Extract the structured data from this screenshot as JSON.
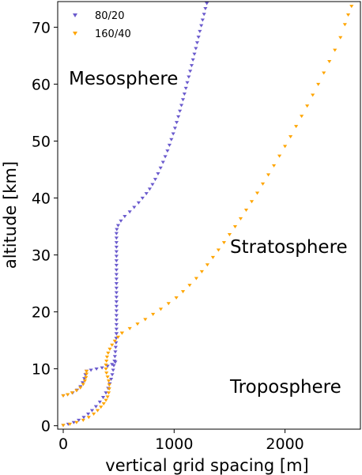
{
  "chart_data": {
    "type": "scatter",
    "xlabel": "vertical grid spacing [m]",
    "ylabel": "altitude [km]",
    "xlim": [
      -50,
      2680
    ],
    "ylim": [
      -0.6,
      74.5
    ],
    "xticks": [
      0,
      1000,
      2000
    ],
    "yticks": [
      0,
      10,
      20,
      30,
      40,
      50,
      60,
      70
    ],
    "xtick_labels": [
      "0",
      "1000",
      "2000"
    ],
    "ytick_labels": [
      "0",
      "10",
      "20",
      "30",
      "40",
      "50",
      "60",
      "70"
    ],
    "grid": false,
    "legend_position": "top-left",
    "annotations": [
      {
        "text": "Mesosphere",
        "x": 0,
        "y": 59.5
      },
      {
        "text": "Stratosphere",
        "x": 1480,
        "y": 28.5
      },
      {
        "text": "Troposphere",
        "x": 1480,
        "y": 4.0
      }
    ],
    "series": [
      {
        "name": "80/20",
        "marker": "triangle-down",
        "color": "#6a5acd",
        "segments": [
          [
            [
              0,
              0.1
            ],
            [
              45,
              0.3
            ],
            [
              95,
              0.6
            ],
            [
              140,
              1.0
            ],
            [
              185,
              1.5
            ],
            [
              225,
              2.1
            ],
            [
              260,
              2.7
            ],
            [
              295,
              3.4
            ],
            [
              330,
              4.2
            ],
            [
              360,
              5.0
            ],
            [
              385,
              5.8
            ],
            [
              405,
              6.6
            ],
            [
              420,
              7.4
            ],
            [
              432,
              8.2
            ],
            [
              442,
              9.0
            ],
            [
              450,
              9.8
            ],
            [
              456,
              10.6
            ],
            [
              462,
              11.4
            ],
            [
              466,
              12.2
            ],
            [
              470,
              13.0
            ],
            [
              473,
              13.8
            ],
            [
              476,
              14.6
            ],
            [
              478,
              15.4
            ],
            [
              480,
              16.2
            ]
          ],
          [
            [
              0,
              5.3
            ],
            [
              40,
              5.5
            ],
            [
              85,
              5.8
            ],
            [
              125,
              6.3
            ],
            [
              155,
              6.9
            ],
            [
              175,
              7.6
            ],
            [
              190,
              8.3
            ],
            [
              200,
              9.0
            ],
            [
              210,
              9.6
            ]
          ],
          [
            [
              210,
              9.6
            ],
            [
              250,
              9.8
            ],
            [
              300,
              10.0
            ],
            [
              350,
              10.2
            ],
            [
              400,
              10.5
            ],
            [
              440,
              10.8
            ],
            [
              470,
              11.2
            ]
          ],
          [
            [
              480,
              16.2
            ],
            [
              480,
              17.0
            ],
            [
              480,
              17.8
            ],
            [
              480,
              18.6
            ],
            [
              480,
              19.4
            ],
            [
              480,
              20.2
            ],
            [
              480,
              21.0
            ],
            [
              480,
              21.8
            ],
            [
              480,
              22.6
            ],
            [
              480,
              23.4
            ],
            [
              480,
              24.2
            ],
            [
              480,
              25.0
            ],
            [
              480,
              25.8
            ],
            [
              480,
              26.6
            ],
            [
              480,
              27.4
            ],
            [
              480,
              28.2
            ],
            [
              480,
              29.0
            ],
            [
              480,
              29.8
            ],
            [
              480,
              30.6
            ],
            [
              480,
              31.4
            ],
            [
              480,
              32.2
            ],
            [
              480,
              33.0
            ],
            [
              480,
              33.8
            ],
            [
              483,
              34.5
            ],
            [
              495,
              35.2
            ],
            [
              520,
              36.0
            ],
            [
              555,
              36.8
            ],
            [
              600,
              37.6
            ],
            [
              640,
              38.4
            ],
            [
              680,
              39.2
            ],
            [
              715,
              40.0
            ],
            [
              750,
              40.8
            ],
            [
              780,
              41.6
            ],
            [
              805,
              42.4
            ],
            [
              830,
              43.3
            ],
            [
              855,
              44.3
            ],
            [
              878,
              45.3
            ],
            [
              900,
              46.3
            ],
            [
              920,
              47.3
            ],
            [
              940,
              48.3
            ],
            [
              958,
              49.3
            ],
            [
              975,
              50.3
            ],
            [
              992,
              51.3
            ],
            [
              1008,
              52.3
            ],
            [
              1023,
              53.3
            ],
            [
              1038,
              54.3
            ],
            [
              1052,
              55.3
            ],
            [
              1066,
              56.3
            ],
            [
              1080,
              57.3
            ],
            [
              1093,
              58.3
            ],
            [
              1106,
              59.3
            ],
            [
              1119,
              60.3
            ],
            [
              1132,
              61.3
            ],
            [
              1145,
              62.3
            ],
            [
              1158,
              63.3
            ],
            [
              1170,
              64.3
            ],
            [
              1183,
              65.3
            ],
            [
              1196,
              66.3
            ],
            [
              1208,
              67.3
            ],
            [
              1220,
              68.3
            ],
            [
              1232,
              69.3
            ],
            [
              1245,
              70.3
            ],
            [
              1257,
              71.3
            ],
            [
              1270,
              72.3
            ],
            [
              1282,
              73.3
            ],
            [
              1295,
              74.2
            ]
          ]
        ]
      },
      {
        "name": "160/40",
        "marker": "triangle-down",
        "color": "#ffa500",
        "segments": [
          [
            [
              0,
              0.1
            ],
            [
              60,
              0.3
            ],
            [
              120,
              0.6
            ],
            [
              180,
              1.0
            ],
            [
              230,
              1.5
            ],
            [
              275,
              2.1
            ],
            [
              310,
              2.7
            ],
            [
              340,
              3.3
            ],
            [
              365,
              3.9
            ],
            [
              385,
              4.5
            ],
            [
              400,
              5.1
            ],
            [
              410,
              5.8
            ],
            [
              415,
              6.5
            ],
            [
              415,
              7.2
            ],
            [
              410,
              7.9
            ],
            [
              400,
              8.6
            ],
            [
              390,
              9.3
            ],
            [
              385,
              10.0
            ],
            [
              385,
              10.7
            ],
            [
              390,
              11.4
            ],
            [
              395,
              12.1
            ],
            [
              405,
              12.8
            ],
            [
              420,
              13.5
            ],
            [
              440,
              14.2
            ],
            [
              465,
              14.9
            ],
            [
              495,
              15.6
            ],
            [
              530,
              16.3
            ]
          ],
          [
            [
              0,
              5.3
            ],
            [
              40,
              5.5
            ],
            [
              80,
              5.8
            ],
            [
              120,
              6.2
            ],
            [
              155,
              6.7
            ],
            [
              180,
              7.3
            ],
            [
              195,
              7.9
            ],
            [
              205,
              8.5
            ],
            [
              210,
              9.1
            ],
            [
              210,
              9.6
            ]
          ],
          [
            [
              530,
              16.3
            ],
            [
              600,
              17.1
            ],
            [
              670,
              17.9
            ],
            [
              740,
              18.7
            ],
            [
              810,
              19.6
            ],
            [
              880,
              20.5
            ],
            [
              950,
              21.5
            ],
            [
              1020,
              22.5
            ],
            [
              1080,
              23.6
            ],
            [
              1140,
              24.7
            ],
            [
              1200,
              25.9
            ],
            [
              1250,
              27.1
            ],
            [
              1300,
              28.3
            ],
            [
              1350,
              29.6
            ],
            [
              1400,
              30.9
            ],
            [
              1450,
              32.2
            ],
            [
              1500,
              33.6
            ],
            [
              1550,
              35.0
            ],
            [
              1600,
              36.4
            ],
            [
              1650,
              37.9
            ],
            [
              1700,
              39.4
            ],
            [
              1750,
              40.9
            ],
            [
              1800,
              42.5
            ],
            [
              1850,
              44.1
            ],
            [
              1900,
              45.7
            ],
            [
              1950,
              47.4
            ],
            [
              2000,
              49.1
            ],
            [
              2050,
              50.8
            ],
            [
              2100,
              52.6
            ],
            [
              2150,
              54.4
            ],
            [
              2200,
              56.2
            ],
            [
              2250,
              58.1
            ],
            [
              2300,
              60.0
            ],
            [
              2350,
              62.0
            ],
            [
              2400,
              64.0
            ],
            [
              2450,
              66.0
            ],
            [
              2500,
              68.2
            ],
            [
              2540,
              70.5
            ],
            [
              2570,
              72.2
            ],
            [
              2600,
              73.7
            ]
          ]
        ]
      }
    ]
  }
}
